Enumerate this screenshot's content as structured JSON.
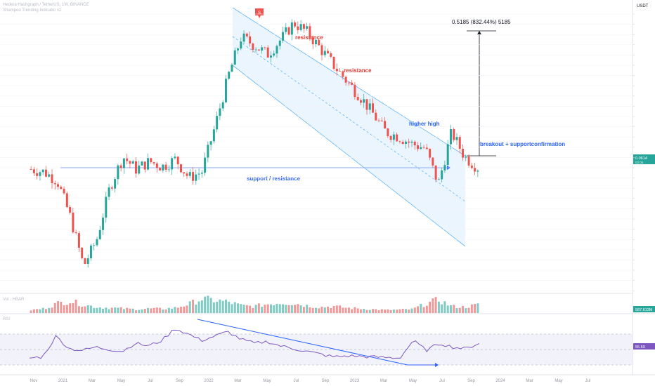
{
  "header": {
    "symbol_line": "Hedera Hashgraph / TetherUS, 1W, BINANCE",
    "indicator_line": "Shampoo Trending Indicator v2"
  },
  "price_axis_unit": "USDT",
  "volume_label": "Vol · HBAR",
  "rsi_label": "RSI",
  "chart_data": [
    {
      "type": "line",
      "title": "Hedera Hashgraph / TetherUS, 1W",
      "xlabel": "",
      "ylabel": "",
      "x_ticks": [
        "Nov",
        "2021",
        "Mar",
        "May",
        "Jul",
        "Sep",
        "2022",
        "Mar",
        "May",
        "Jul",
        "Sep",
        "2023",
        "Mar",
        "May",
        "Jul",
        "Sep",
        "2024",
        "Mar",
        "May",
        "Jul"
      ],
      "current_price": "0.0614",
      "current_price_sub": "02:05",
      "annotations": [
        {
          "text": "resistance",
          "color": "#e53935"
        },
        {
          "text": "resistance",
          "color": "#e53935"
        },
        {
          "text": "higher high",
          "color": "#2962ff"
        },
        {
          "text": "breakout + supportconfirmation",
          "color": "#2962ff"
        },
        {
          "text": "support / resistance",
          "color": "#2962ff"
        },
        {
          "text": "0.5185 (832.44%) 5185",
          "color": "#131722"
        }
      ],
      "signal_marker": "S",
      "series": [
        {
          "name": "",
          "x": [
            0,
            1,
            2,
            3,
            4,
            5,
            6,
            7,
            8,
            9,
            10,
            11,
            12,
            13,
            14,
            15,
            16,
            17,
            18,
            19,
            20,
            21,
            22,
            23,
            24,
            25,
            26,
            27,
            28,
            29,
            30,
            31,
            32,
            33,
            34
          ],
          "values": [
            0.06,
            0.058,
            0.052,
            0.033,
            0.018,
            0.025,
            0.048,
            0.07,
            0.06,
            0.066,
            0.062,
            0.068,
            0.054,
            0.058,
            0.102,
            0.19,
            0.31,
            0.28,
            0.25,
            0.3,
            0.37,
            0.33,
            0.27,
            0.22,
            0.18,
            0.15,
            0.12,
            0.095,
            0.09,
            0.082,
            0.078,
            0.05,
            0.095,
            0.07,
            0.0614
          ],
          "color": "#26a69a"
        }
      ],
      "ylim": [
        0.015,
        0.45
      ],
      "grid": true
    },
    {
      "type": "bar",
      "title": "",
      "volume_last": "587.612M",
      "x": [
        0,
        1,
        2,
        3,
        4,
        5,
        6,
        7,
        8,
        9,
        10,
        11,
        12,
        13,
        14,
        15,
        16,
        17,
        18,
        19,
        20,
        21,
        22,
        23,
        24,
        25,
        26,
        27,
        28,
        29,
        30,
        31,
        32,
        33,
        34
      ],
      "values": [
        20,
        30,
        65,
        80,
        55,
        40,
        35,
        30,
        25,
        30,
        28,
        35,
        60,
        95,
        85,
        75,
        50,
        45,
        60,
        70,
        65,
        50,
        40,
        45,
        35,
        30,
        25,
        20,
        22,
        25,
        60,
        90,
        45,
        40,
        55
      ]
    },
    {
      "type": "line",
      "title": "",
      "rsi_last": "55.59",
      "levels": [
        70,
        50,
        30
      ],
      "ylim": [
        0,
        100
      ],
      "x": [
        0,
        1,
        2,
        3,
        4,
        5,
        6,
        7,
        8,
        9,
        10,
        11,
        12,
        13,
        14,
        15,
        16,
        17,
        18,
        19,
        20,
        21,
        22,
        23,
        24,
        25,
        26,
        27,
        28,
        29,
        30,
        31,
        32,
        33,
        34
      ],
      "values": [
        28,
        30,
        68,
        45,
        42,
        48,
        44,
        40,
        55,
        50,
        60,
        82,
        72,
        60,
        68,
        76,
        62,
        55,
        58,
        50,
        45,
        40,
        35,
        30,
        32,
        31,
        30,
        29,
        28,
        60,
        42,
        55,
        48,
        45,
        55.59
      ],
      "color": "#7e57c2"
    }
  ]
}
